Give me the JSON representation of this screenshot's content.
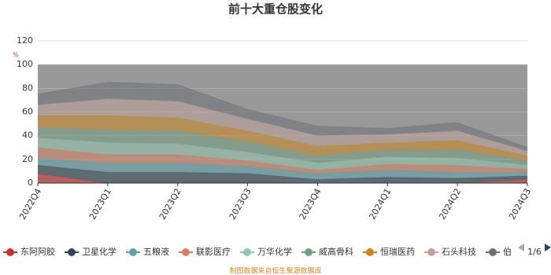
{
  "chart_data": {
    "type": "stacked_area",
    "title": "前十大重仓股变化",
    "y_unit": "%",
    "categories": [
      "2022Q4",
      "2023Q1",
      "2023Q2",
      "2023Q3",
      "2023Q4",
      "2024Q1",
      "2024Q2",
      "2024Q3"
    ],
    "ylim": [
      0,
      120
    ],
    "yticks": [
      0,
      20,
      40,
      60,
      80,
      100,
      120
    ],
    "grid": true,
    "shaded_band": [
      0,
      100
    ],
    "series": [
      {
        "name": "东阿阿胶",
        "color": "#c23531",
        "values": [
          8,
          0,
          0,
          0,
          0,
          0,
          0,
          3
        ]
      },
      {
        "name": "卫星化学",
        "color": "#2f4554",
        "values": [
          7,
          9,
          9,
          8,
          3,
          5,
          4,
          3
        ]
      },
      {
        "name": "五粮液",
        "color": "#61a0a8",
        "values": [
          6,
          8,
          8,
          6,
          5,
          6,
          5,
          3
        ]
      },
      {
        "name": "联影医疗",
        "color": "#d48265",
        "values": [
          9,
          7,
          7,
          5,
          3,
          5,
          6,
          3
        ]
      },
      {
        "name": "万华化学",
        "color": "#91c7ae",
        "values": [
          8,
          10,
          9,
          7,
          6,
          6,
          6,
          3
        ]
      },
      {
        "name": "威高骨科",
        "color": "#749f83",
        "values": [
          9,
          11,
          11,
          9,
          6,
          6,
          7,
          4
        ]
      },
      {
        "name": "恒瑞医药",
        "color": "#ca8622",
        "values": [
          10,
          12,
          11,
          9,
          8,
          6,
          8,
          4
        ]
      },
      {
        "name": "石头科技",
        "color": "#bda29a",
        "values": [
          9,
          14,
          14,
          10,
          9,
          7,
          8,
          4
        ]
      },
      {
        "name": "伯",
        "color": "#6e7074",
        "values": [
          9,
          14,
          14,
          8,
          8,
          5,
          7,
          3
        ]
      }
    ],
    "legend_page": "1/6",
    "source": "制图数据来自恒生聚源数据库"
  }
}
